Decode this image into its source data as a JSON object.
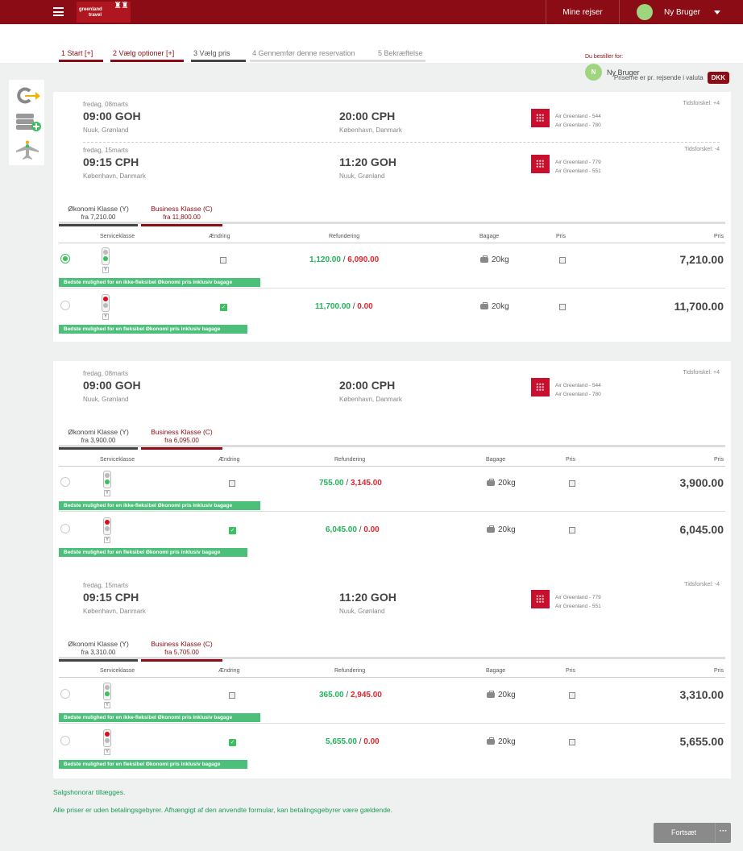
{
  "header": {
    "logo_line1": "greenland",
    "logo_line2": "travel",
    "my_trips": "Mine rejser",
    "user_name": "Ny Bruger"
  },
  "steps": [
    {
      "label": "1 Start  [+]",
      "state": "done"
    },
    {
      "label": "2 Vælg optioner  [+]",
      "state": "done"
    },
    {
      "label": "3 Vælg pris",
      "state": "current"
    },
    {
      "label": "4 Gennemfør denne reservation",
      "state": "future"
    },
    {
      "label": "5 Bekræftelse",
      "state": "future"
    }
  ],
  "order_for": {
    "label": "Du bestiller for:",
    "initial": "N",
    "name": "Ny Bruger"
  },
  "currency": {
    "note": "Priserne er pr. rejsende i valuta",
    "code": "DKK"
  },
  "side_tools": [
    "change-search-icon",
    "add-booking-icon",
    "flight-icon"
  ],
  "table_headers": {
    "serviceklasse": "Serviceklasse",
    "aendring": "Ændring",
    "refundering": "Refundering",
    "bagage": "Bagage",
    "pris1": "Pris",
    "pris2": "Pris"
  },
  "cards": [
    {
      "segments": [
        {
          "date": "fredag, 08marts",
          "dep_time": "09:00 GOH",
          "dep_loc": "Nuuk, Grønland",
          "arr_time": "20:00 CPH",
          "arr_loc": "København, Danmark",
          "flight1": "Air Greenland - 544",
          "flight2": "Air Greenland - 780",
          "tidsforskel": "Tidsforskel: +4"
        },
        {
          "date": "fredag, 15marts",
          "dep_time": "09:15 CPH",
          "dep_loc": "København, Danmark",
          "arr_time": "11:20 GOH",
          "arr_loc": "Nuuk, Grønland",
          "flight1": "Air Greenland - 779",
          "flight2": "Air Greenland - 551",
          "tidsforskel": "Tidsforskel: -4"
        }
      ],
      "tabs": {
        "eco_name": "Økonomi Klasse (Y)",
        "eco_from": "fra 7,210.00",
        "bus_name": "Business Klasse (C)",
        "bus_from": "fra 11,800.00"
      },
      "rows": [
        {
          "selected": true,
          "light": "green",
          "class_code": "Y",
          "refund_green": "1,120.00",
          "refund_red": "6,090.00",
          "baggage": "20kg",
          "price": "7,210.00",
          "banner": "Bedste mulighed for en ikke-fleksibel Økonomi pris inklusiv bagage"
        },
        {
          "selected": false,
          "light": "red",
          "class_code": "Y",
          "refund_green": "11,700.00",
          "refund_red": "0.00",
          "baggage": "20kg",
          "price": "11,700.00",
          "banner": "Bedste mulighed for en fleksibel Økonomi pris inklusiv bagage"
        }
      ]
    },
    {
      "segments": [
        {
          "date": "fredag, 08marts",
          "dep_time": "09:00 GOH",
          "dep_loc": "Nuuk, Grønland",
          "arr_time": "20:00 CPH",
          "arr_loc": "København, Danmark",
          "flight1": "Air Greenland - 544",
          "flight2": "Air Greenland - 780",
          "tidsforskel": "Tidsforskel: +4"
        }
      ],
      "tabs": {
        "eco_name": "Økonomi Klasse (Y)",
        "eco_from": "fra 3,900.00",
        "bus_name": "Business Klasse (C)",
        "bus_from": "fra 6,095.00"
      },
      "rows": [
        {
          "selected": false,
          "light": "green",
          "class_code": "Y",
          "refund_green": "755.00",
          "refund_red": "3,145.00",
          "baggage": "20kg",
          "price": "3,900.00",
          "banner": "Bedste mulighed for en ikke-fleksibel Økonomi pris inklusiv bagage"
        },
        {
          "selected": false,
          "light": "red",
          "class_code": "Y",
          "refund_green": "6,045.00",
          "refund_red": "0.00",
          "baggage": "20kg",
          "price": "6,045.00",
          "banner": "Bedste mulighed for en fleksibel Økonomi pris inklusiv bagage"
        }
      ]
    },
    {
      "segments": [
        {
          "date": "fredag, 15marts",
          "dep_time": "09:15 CPH",
          "dep_loc": "København, Danmark",
          "arr_time": "11:20 GOH",
          "arr_loc": "Nuuk, Grønland",
          "flight1": "Air Greenland - 779",
          "flight2": "Air Greenland - 551",
          "tidsforskel": "Tidsforskel: -4"
        }
      ],
      "tabs": {
        "eco_name": "Økonomi Klasse (Y)",
        "eco_from": "fra 3,310.00",
        "bus_name": "Business Klasse (C)",
        "bus_from": "fra 5,705.00"
      },
      "rows": [
        {
          "selected": false,
          "light": "green",
          "class_code": "Y",
          "refund_green": "365.00",
          "refund_red": "2,945.00",
          "baggage": "20kg",
          "price": "3,310.00",
          "banner": "Bedste mulighed for en ikke-fleksibel Økonomi pris inklusiv bagage"
        },
        {
          "selected": false,
          "light": "red",
          "class_code": "Y",
          "refund_green": "5,655.00",
          "refund_red": "0.00",
          "baggage": "20kg",
          "price": "5,655.00",
          "banner": "Bedste mulighed for en fleksibel Økonomi pris inklusiv bagage"
        }
      ]
    }
  ],
  "footer": {
    "note1": "Salgshonorar tillægges.",
    "note2": "Alle priser er uden betalingsgebyrer. Afhængigt af den anvendte formular, kan betalingsgebyrer være gældende.",
    "continue_label": "Fortsæt",
    "more_label": "···"
  }
}
